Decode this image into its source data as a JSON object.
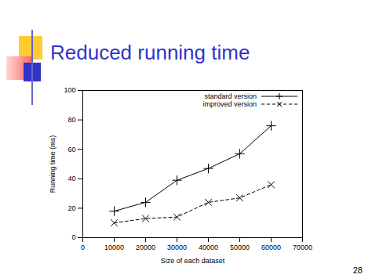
{
  "chart_data": {
    "type": "line",
    "title": "Reduced running time",
    "x_label": "Size of each dataset",
    "y_label": "Running time (ms)",
    "x": [
      10000,
      20000,
      30000,
      40000,
      50000,
      60000
    ],
    "series": [
      {
        "name": "standard version",
        "color": "#000000",
        "marker": "plus",
        "line_style": "solid",
        "values": [
          18,
          24,
          39,
          47,
          57,
          76
        ]
      },
      {
        "name": "improved version",
        "color": "#000000",
        "marker": "times",
        "line_style": "dashed",
        "values": [
          10,
          13,
          14,
          24,
          27,
          36
        ]
      }
    ],
    "xlim": [
      0,
      70000
    ],
    "xticks": [
      0,
      10000,
      20000,
      30000,
      40000,
      50000,
      60000,
      70000
    ],
    "ylim": [
      0,
      100
    ],
    "yticks": [
      0,
      20,
      40,
      60,
      80,
      100
    ],
    "grid": false,
    "legend": "top-right"
  },
  "page_number": 28
}
